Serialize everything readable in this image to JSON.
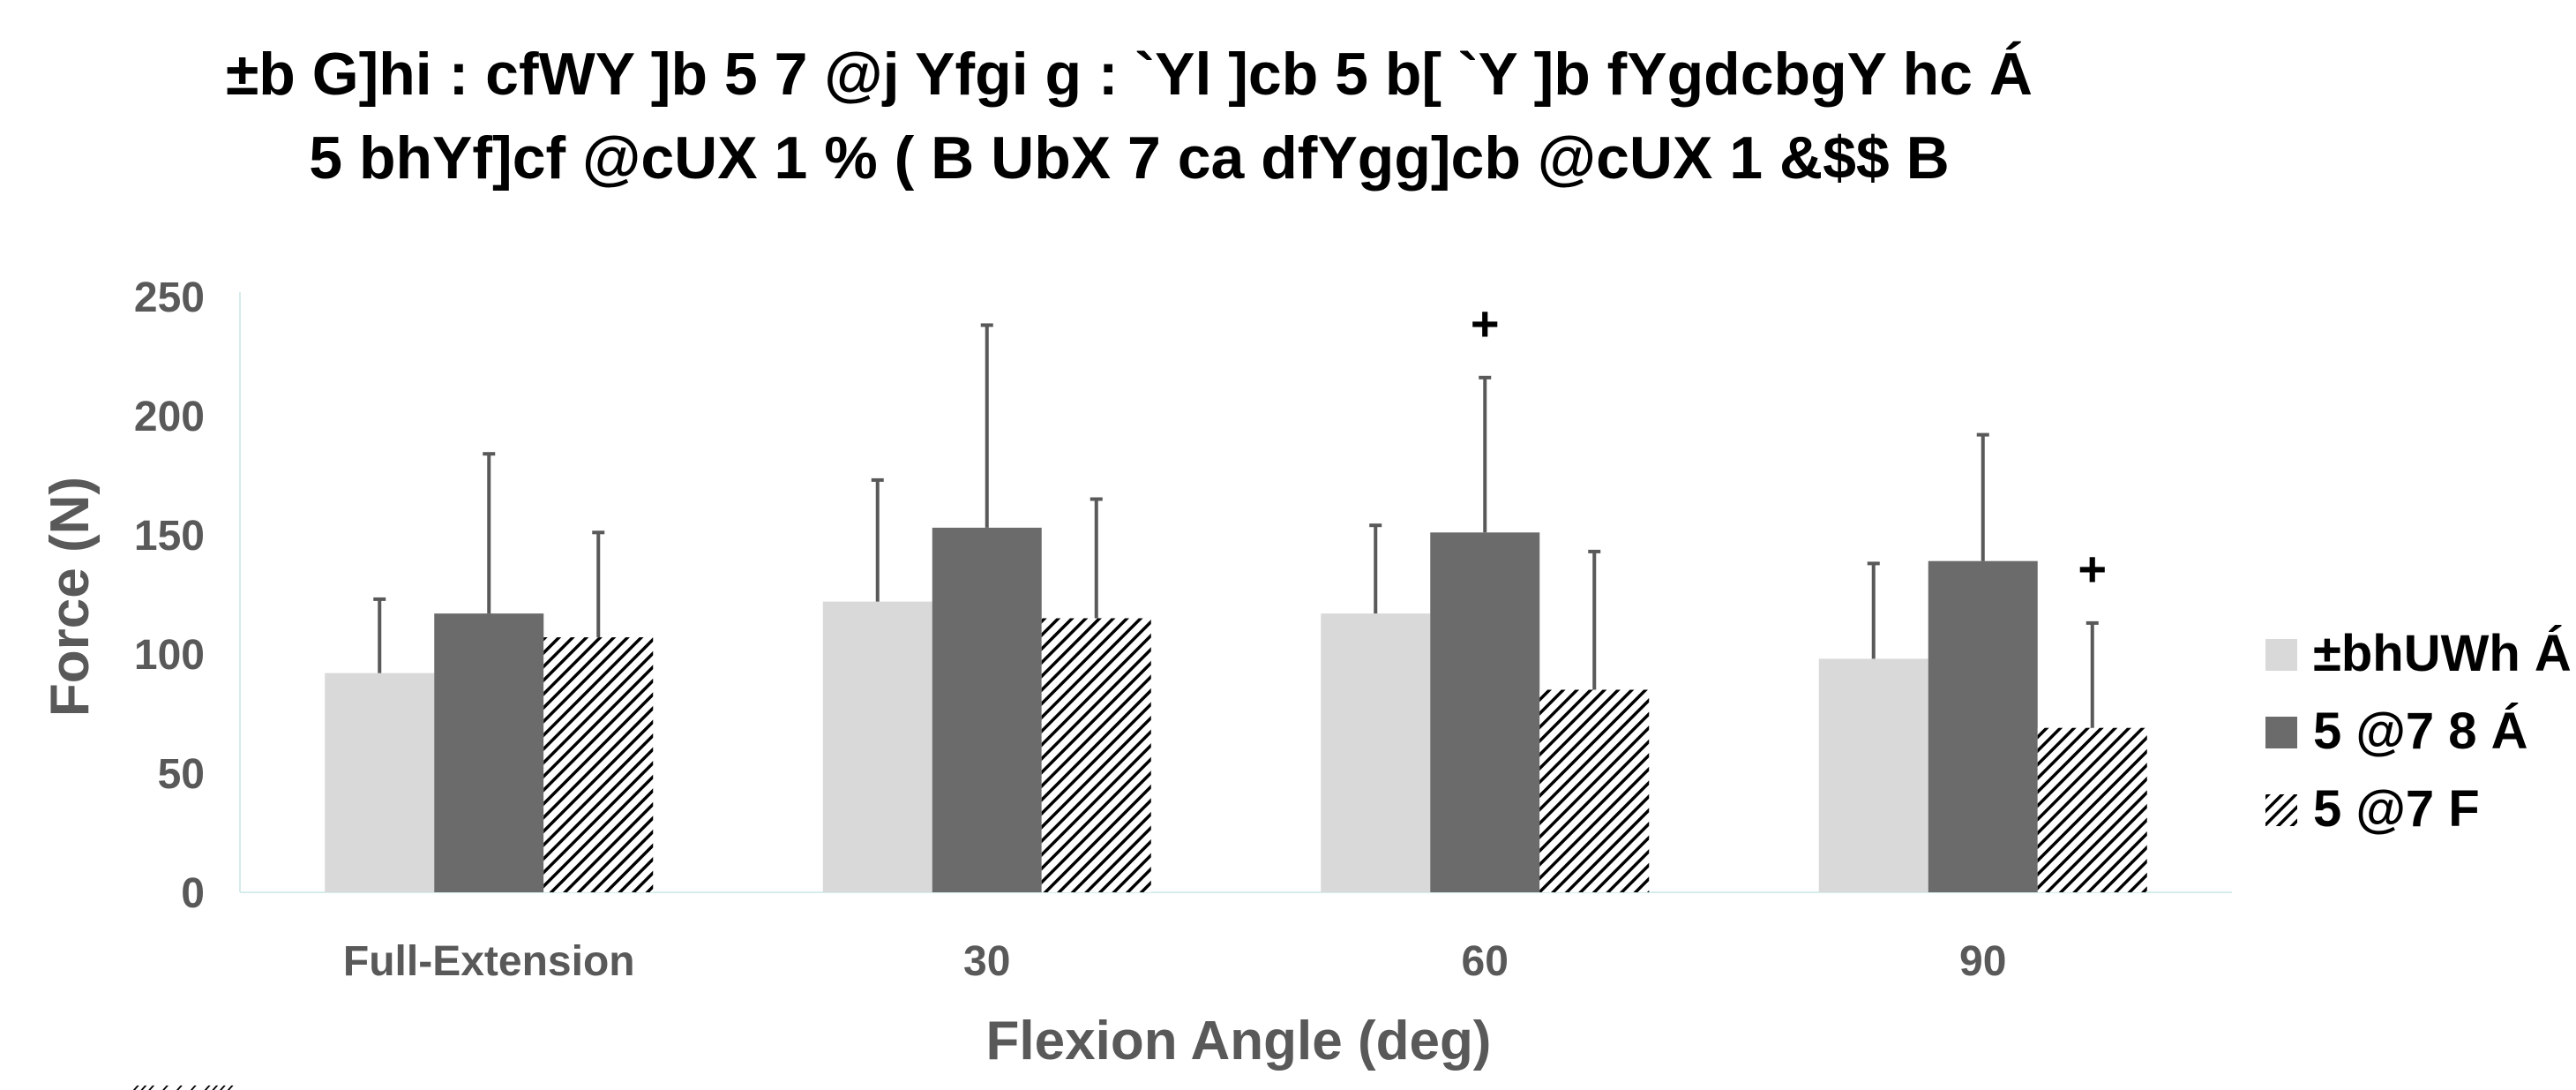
{
  "title_line1": "±b G]hi : cfWY ]b 5 7 @j Yfgi g : `Yl ]cb 5 b[ `Y ]b fYgdcbgY hc Á",
  "title_line2": "5 bhYf]cf @cUX 1 % ( B UbX 7 ca dfYgg]cb @cUX 1 &$$ B",
  "footnote": "‹‹‹ ‹ ‹ ‹ ‹‹‹‹",
  "colors": {
    "intact": "#d9d9d9",
    "acl_deficient": "#6b6b6b",
    "hatch": "#000000",
    "error_bar": "#595959",
    "axis_line": "#d5ecec",
    "tick_text": "#595959"
  },
  "chart_data": {
    "type": "bar",
    "categories": [
      "Full-Extension",
      "30",
      "60",
      "90"
    ],
    "xlabel": "Flexion Angle (deg)",
    "ylabel": "Force (N)",
    "ylim": [
      0,
      250
    ],
    "yticks": [
      0,
      50,
      100,
      150,
      200,
      250
    ],
    "grid": false,
    "legend_position": "right",
    "series": [
      {
        "name": "±bhUWh Á",
        "pattern": "solid-light",
        "values": [
          92,
          122,
          117,
          98
        ],
        "error_upper": [
          123,
          173,
          154,
          138
        ]
      },
      {
        "name": "5 @7 8 Á",
        "pattern": "solid-dark",
        "values": [
          117,
          153,
          151,
          139
        ],
        "error_upper": [
          184,
          238,
          216,
          192
        ]
      },
      {
        "name": "5 @7 F",
        "pattern": "hatched",
        "values": [
          107,
          115,
          85,
          69
        ],
        "error_upper": [
          151,
          165,
          143,
          113
        ]
      }
    ],
    "annotations": [
      {
        "category": "60",
        "series": "5 @7 8 Á",
        "text": "+"
      },
      {
        "category": "90",
        "series": "5 @7 F",
        "text": "+"
      }
    ]
  }
}
